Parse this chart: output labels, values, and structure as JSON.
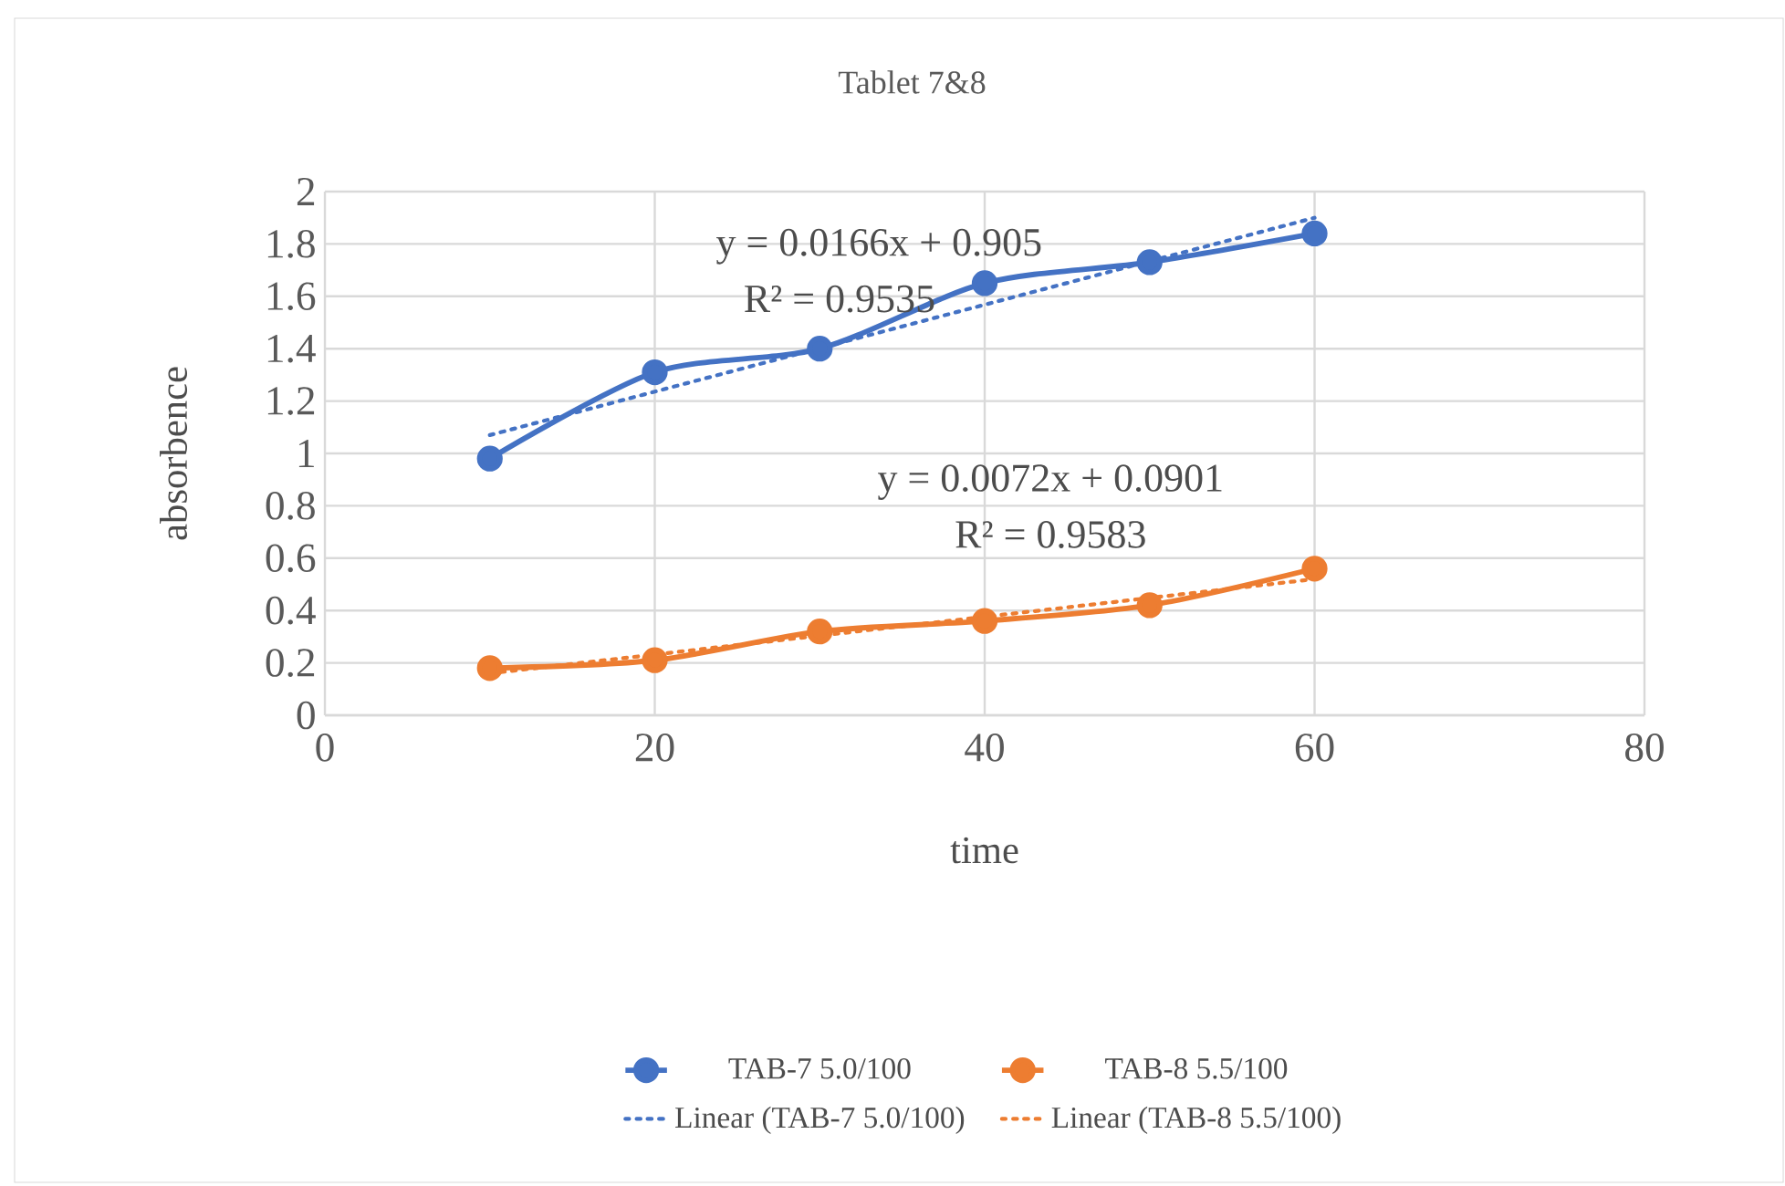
{
  "chart_data": {
    "type": "line",
    "title": "Tablet 7&8",
    "xlabel": "time",
    "ylabel": "absorbence",
    "xlim": [
      0,
      80
    ],
    "xticks": [
      0,
      20,
      40,
      60,
      80
    ],
    "ylim": [
      0,
      2
    ],
    "yticks": [
      0,
      0.2,
      0.4,
      0.6,
      0.8,
      1,
      1.2,
      1.4,
      1.6,
      1.8,
      2
    ],
    "grid": true,
    "legend": "bottom",
    "series": [
      {
        "name": "TAB-7 5.0/100",
        "color": "#4472c4",
        "x": [
          10,
          20,
          30,
          40,
          50,
          60
        ],
        "values": [
          0.98,
          1.31,
          1.4,
          1.65,
          1.73,
          1.84
        ],
        "marker": "circle",
        "line_style": "solid"
      },
      {
        "name": "TAB-8 5.5/100",
        "color": "#ed7d31",
        "x": [
          10,
          20,
          30,
          40,
          50,
          60
        ],
        "values": [
          0.18,
          0.21,
          0.32,
          0.36,
          0.42,
          0.56
        ],
        "marker": "circle",
        "line_style": "solid"
      },
      {
        "name": "Linear (TAB-7 5.0/100)",
        "color": "#4472c4",
        "x": [
          10,
          60
        ],
        "values": [
          1.07,
          1.9
        ],
        "marker": "none",
        "line_style": "dotted"
      },
      {
        "name": "Linear (TAB-8 5.5/100)",
        "color": "#ed7d31",
        "x": [
          10,
          60
        ],
        "values": [
          0.16,
          0.52
        ],
        "marker": "none",
        "line_style": "dotted"
      }
    ],
    "annotations": [
      "y = 0.0166x + 0.905",
      "R² = 0.9535",
      "y = 0.0072x + 0.0901",
      "R² = 0.9583"
    ]
  }
}
